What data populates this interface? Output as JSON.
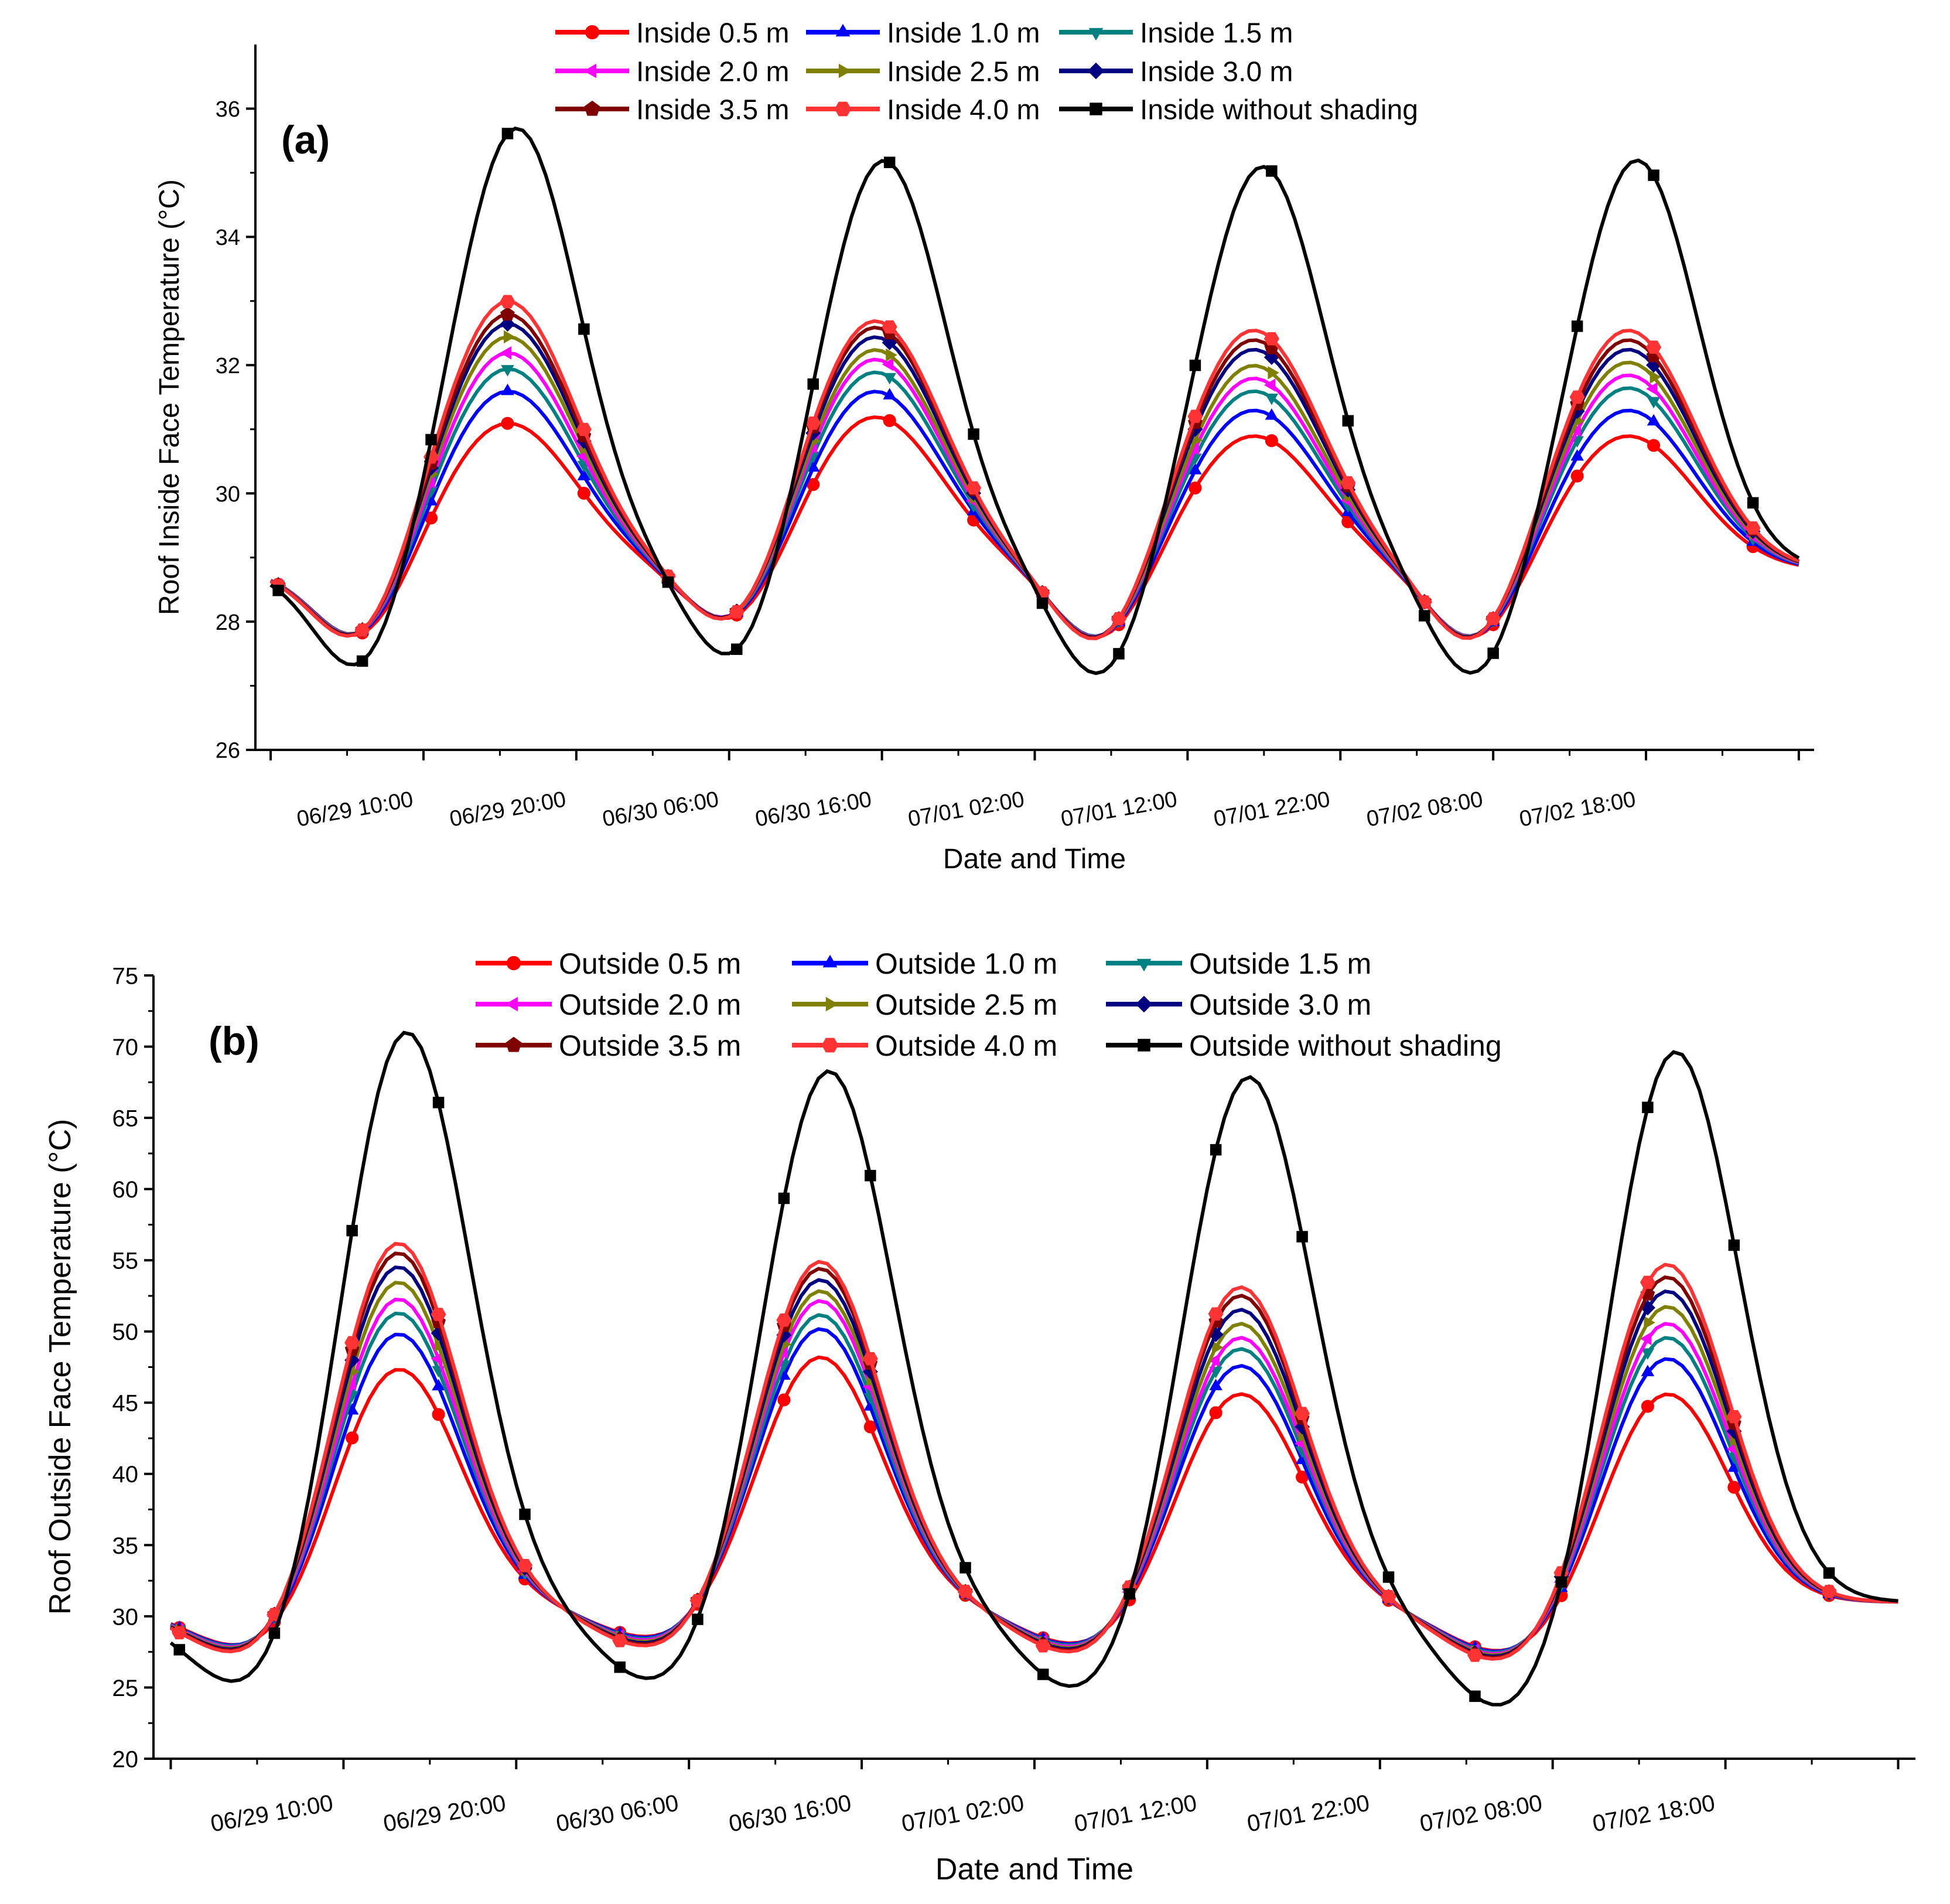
{
  "chart_data": [
    {
      "type": "line",
      "panel_label": "(a)",
      "xlabel": "Date and Time",
      "ylabel": "Roof Inside Face Temperature (°C)",
      "ylim": [
        26,
        37
      ],
      "xlim": [
        -1,
        101
      ],
      "yticks": [
        26,
        28,
        30,
        32,
        34,
        36
      ],
      "xticks": [
        {
          "x": 10,
          "label": "06/29  10:00"
        },
        {
          "x": 20,
          "label": "06/29  20:00"
        },
        {
          "x": 30,
          "label": "06/30  06:00"
        },
        {
          "x": 40,
          "label": "06/30  16:00"
        },
        {
          "x": 50,
          "label": "07/01  02:00"
        },
        {
          "x": 60,
          "label": "07/01  12:00"
        },
        {
          "x": 70,
          "label": "07/01  22:00"
        },
        {
          "x": 80,
          "label": "07/02  08:00"
        },
        {
          "x": 90,
          "label": "07/02  18:00"
        }
      ],
      "legend_position": "top-center",
      "series": [
        {
          "name": "Inside  0.5 m",
          "color": "#ff0000",
          "marker": "circle",
          "peak": [
            31.1,
            31.2,
            30.9,
            30.9
          ]
        },
        {
          "name": "Inside  1.0 m",
          "color": "#0000ff",
          "marker": "triangle-up",
          "peak": [
            31.6,
            31.6,
            31.3,
            31.3
          ]
        },
        {
          "name": "Inside  1.5 m",
          "color": "#008080",
          "marker": "triangle-down",
          "peak": [
            31.95,
            31.9,
            31.6,
            31.65
          ]
        },
        {
          "name": "Inside  2.0 m",
          "color": "#ff00ff",
          "marker": "triangle-left",
          "peak": [
            32.2,
            32.1,
            31.8,
            31.85
          ]
        },
        {
          "name": "Inside  2.5 m",
          "color": "#808000",
          "marker": "triangle-right",
          "peak": [
            32.45,
            32.25,
            32.0,
            32.05
          ]
        },
        {
          "name": "Inside  3.0 m",
          "color": "#000080",
          "marker": "diamond",
          "peak": [
            32.65,
            32.45,
            32.25,
            32.25
          ]
        },
        {
          "name": "Inside  3.5 m",
          "color": "#800000",
          "marker": "pentagon",
          "peak": [
            32.8,
            32.6,
            32.4,
            32.4
          ]
        },
        {
          "name": "Inside  4.0 m",
          "color": "#ff3333",
          "marker": "hexagon",
          "peak": [
            33.0,
            32.7,
            32.55,
            32.55
          ]
        },
        {
          "name": "Inside without shading",
          "color": "#000000",
          "marker": "square",
          "peak": [
            35.7,
            35.2,
            35.1,
            35.2
          ]
        }
      ]
    },
    {
      "type": "line",
      "panel_label": "(b)",
      "xlabel": "Date and Time",
      "ylabel": "Roof Outside Face Temperature (°C)",
      "ylim": [
        20,
        75
      ],
      "xlim": [
        -1,
        101
      ],
      "yticks": [
        20,
        25,
        30,
        35,
        40,
        45,
        50,
        55,
        60,
        65,
        70,
        75
      ],
      "xticks": [
        {
          "x": 10,
          "label": "06/29  10:00"
        },
        {
          "x": 20,
          "label": "06/29  20:00"
        },
        {
          "x": 30,
          "label": "06/30  06:00"
        },
        {
          "x": 40,
          "label": "06/30  16:00"
        },
        {
          "x": 50,
          "label": "07/01  02:00"
        },
        {
          "x": 60,
          "label": "07/01  12:00"
        },
        {
          "x": 70,
          "label": "07/01  22:00"
        },
        {
          "x": 80,
          "label": "07/02  08:00"
        },
        {
          "x": 90,
          "label": "07/02  18:00"
        }
      ],
      "legend_position": "top-center",
      "series": [
        {
          "name": "Outside  0.5 m",
          "color": "#ff0000",
          "marker": "circle",
          "peak": [
            48.0,
            48.5,
            46.0,
            46.0
          ]
        },
        {
          "name": "Outside 1.0 m",
          "color": "#0000ff",
          "marker": "triangle-up",
          "peak": [
            50.5,
            50.5,
            48.0,
            48.5
          ]
        },
        {
          "name": "Outside  1.5 m",
          "color": "#008080",
          "marker": "triangle-down",
          "peak": [
            52.0,
            51.5,
            49.2,
            50.0
          ]
        },
        {
          "name": "Outside  2.0 m",
          "color": "#ff00ff",
          "marker": "triangle-left",
          "peak": [
            53.0,
            52.5,
            50.0,
            51.0
          ]
        },
        {
          "name": "Outside  2.5 m",
          "color": "#808000",
          "marker": "triangle-right",
          "peak": [
            54.2,
            53.2,
            51.0,
            52.2
          ]
        },
        {
          "name": "Outside  3.0 m",
          "color": "#000080",
          "marker": "diamond",
          "peak": [
            55.3,
            54.0,
            52.0,
            53.3
          ]
        },
        {
          "name": "Outside  3.5 m",
          "color": "#800000",
          "marker": "pentagon",
          "peak": [
            56.3,
            54.8,
            53.0,
            54.3
          ]
        },
        {
          "name": "Outside 4.0 m",
          "color": "#ff3333",
          "marker": "hexagon",
          "peak": [
            57.0,
            55.3,
            53.6,
            55.2
          ]
        },
        {
          "name": "Outside without shading",
          "color": "#000000",
          "marker": "square",
          "peak": [
            72.0,
            68.8,
            68.5,
            70.3
          ]
        }
      ]
    }
  ]
}
